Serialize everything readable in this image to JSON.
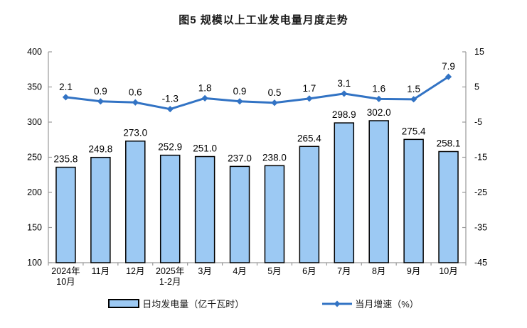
{
  "chart_data": {
    "type": "bar+line",
    "title": "图5  规模以上工业发电量月度走势",
    "categories": [
      "2024年\n10月",
      "11月",
      "12月",
      "2025年\n1-2月",
      "3月",
      "4月",
      "5月",
      "6月",
      "7月",
      "8月",
      "9月",
      "10月"
    ],
    "series": [
      {
        "name": "日均发电量（亿千瓦时）",
        "type": "bar",
        "axis": "left",
        "values": [
          235.8,
          249.8,
          273.0,
          252.9,
          251.0,
          237.0,
          238.0,
          265.4,
          298.9,
          302.0,
          275.4,
          258.1
        ],
        "fill_color": "#9CC9F3",
        "border_color": "#000000"
      },
      {
        "name": "当月增速（%）",
        "type": "line",
        "axis": "right",
        "values": [
          2.1,
          0.9,
          0.6,
          -1.3,
          1.8,
          0.9,
          0.5,
          1.7,
          3.1,
          1.6,
          1.5,
          7.9
        ],
        "line_color": "#3273C4",
        "marker": "diamond"
      }
    ],
    "left_axis": {
      "min": 100,
      "max": 400,
      "ticks": [
        400,
        350,
        300,
        250,
        200,
        150,
        100
      ]
    },
    "right_axis": {
      "min": -45,
      "max": 15,
      "ticks": [
        15,
        5,
        -5,
        -15,
        -25,
        -35,
        -45
      ]
    },
    "grid": false,
    "legend_position": "bottom",
    "axis_color": "#999999",
    "label_color": "#000000",
    "value_label_decimals": 1
  }
}
